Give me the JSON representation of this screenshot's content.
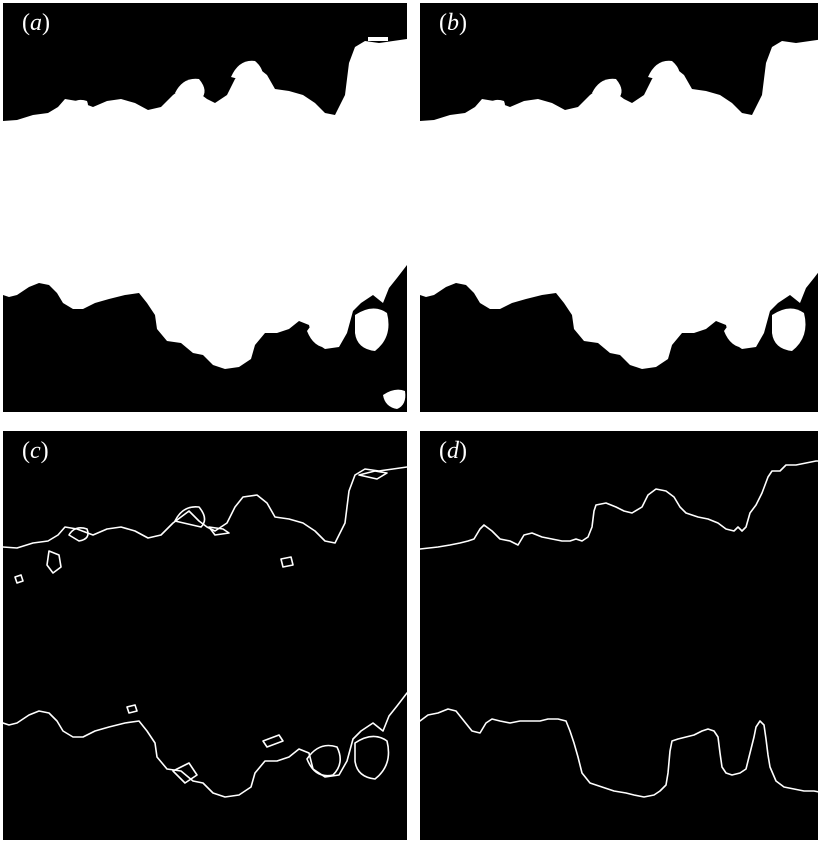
{
  "figure": {
    "panels": [
      {
        "id": "a",
        "letter": "a",
        "open": "(",
        "close": ")"
      },
      {
        "id": "b",
        "letter": "b",
        "open": "(",
        "close": ")"
      },
      {
        "id": "c",
        "letter": "c",
        "open": "(",
        "close": ")"
      },
      {
        "id": "d",
        "letter": "d",
        "open": "(",
        "close": ")"
      }
    ],
    "colors": {
      "background": "#000000",
      "foreground": "#ffffff",
      "page": "#ffffff"
    }
  }
}
